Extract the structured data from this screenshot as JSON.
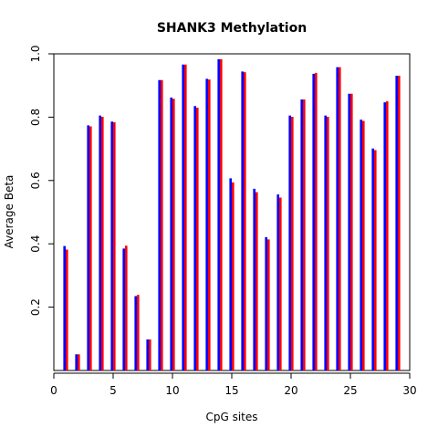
{
  "chart_data": {
    "type": "bar",
    "title": "SHANK3 Methylation",
    "xlabel": "CpG sites",
    "ylabel": "Average Beta",
    "xlim": [
      0,
      30
    ],
    "ylim": [
      0,
      1.0
    ],
    "x_ticks": [
      "0",
      "5",
      "10",
      "15",
      "20",
      "25",
      "30"
    ],
    "y_ticks": [
      "0.2",
      "0.4",
      "0.6",
      "0.8",
      "1.0"
    ],
    "grid": false,
    "legend": "none",
    "x": [
      1,
      2,
      3,
      4,
      5,
      6,
      7,
      8,
      9,
      10,
      11,
      12,
      13,
      14,
      15,
      16,
      17,
      18,
      19,
      20,
      21,
      22,
      23,
      24,
      25,
      26,
      27,
      28,
      29
    ],
    "series": [
      {
        "color": "#0000ff",
        "values": [
          0.393,
          0.051,
          0.774,
          0.805,
          0.786,
          0.385,
          0.235,
          0.098,
          0.917,
          0.862,
          0.966,
          0.835,
          0.921,
          0.983,
          0.607,
          0.944,
          0.574,
          0.421,
          0.556,
          0.805,
          0.856,
          0.937,
          0.805,
          0.958,
          0.874,
          0.792,
          0.701,
          0.847,
          0.931
        ]
      },
      {
        "color": "#ff0000",
        "values": [
          0.382,
          0.051,
          0.771,
          0.801,
          0.784,
          0.394,
          0.239,
          0.098,
          0.917,
          0.858,
          0.966,
          0.83,
          0.919,
          0.983,
          0.594,
          0.942,
          0.563,
          0.414,
          0.546,
          0.801,
          0.856,
          0.94,
          0.801,
          0.958,
          0.874,
          0.788,
          0.696,
          0.85,
          0.931
        ]
      }
    ]
  }
}
